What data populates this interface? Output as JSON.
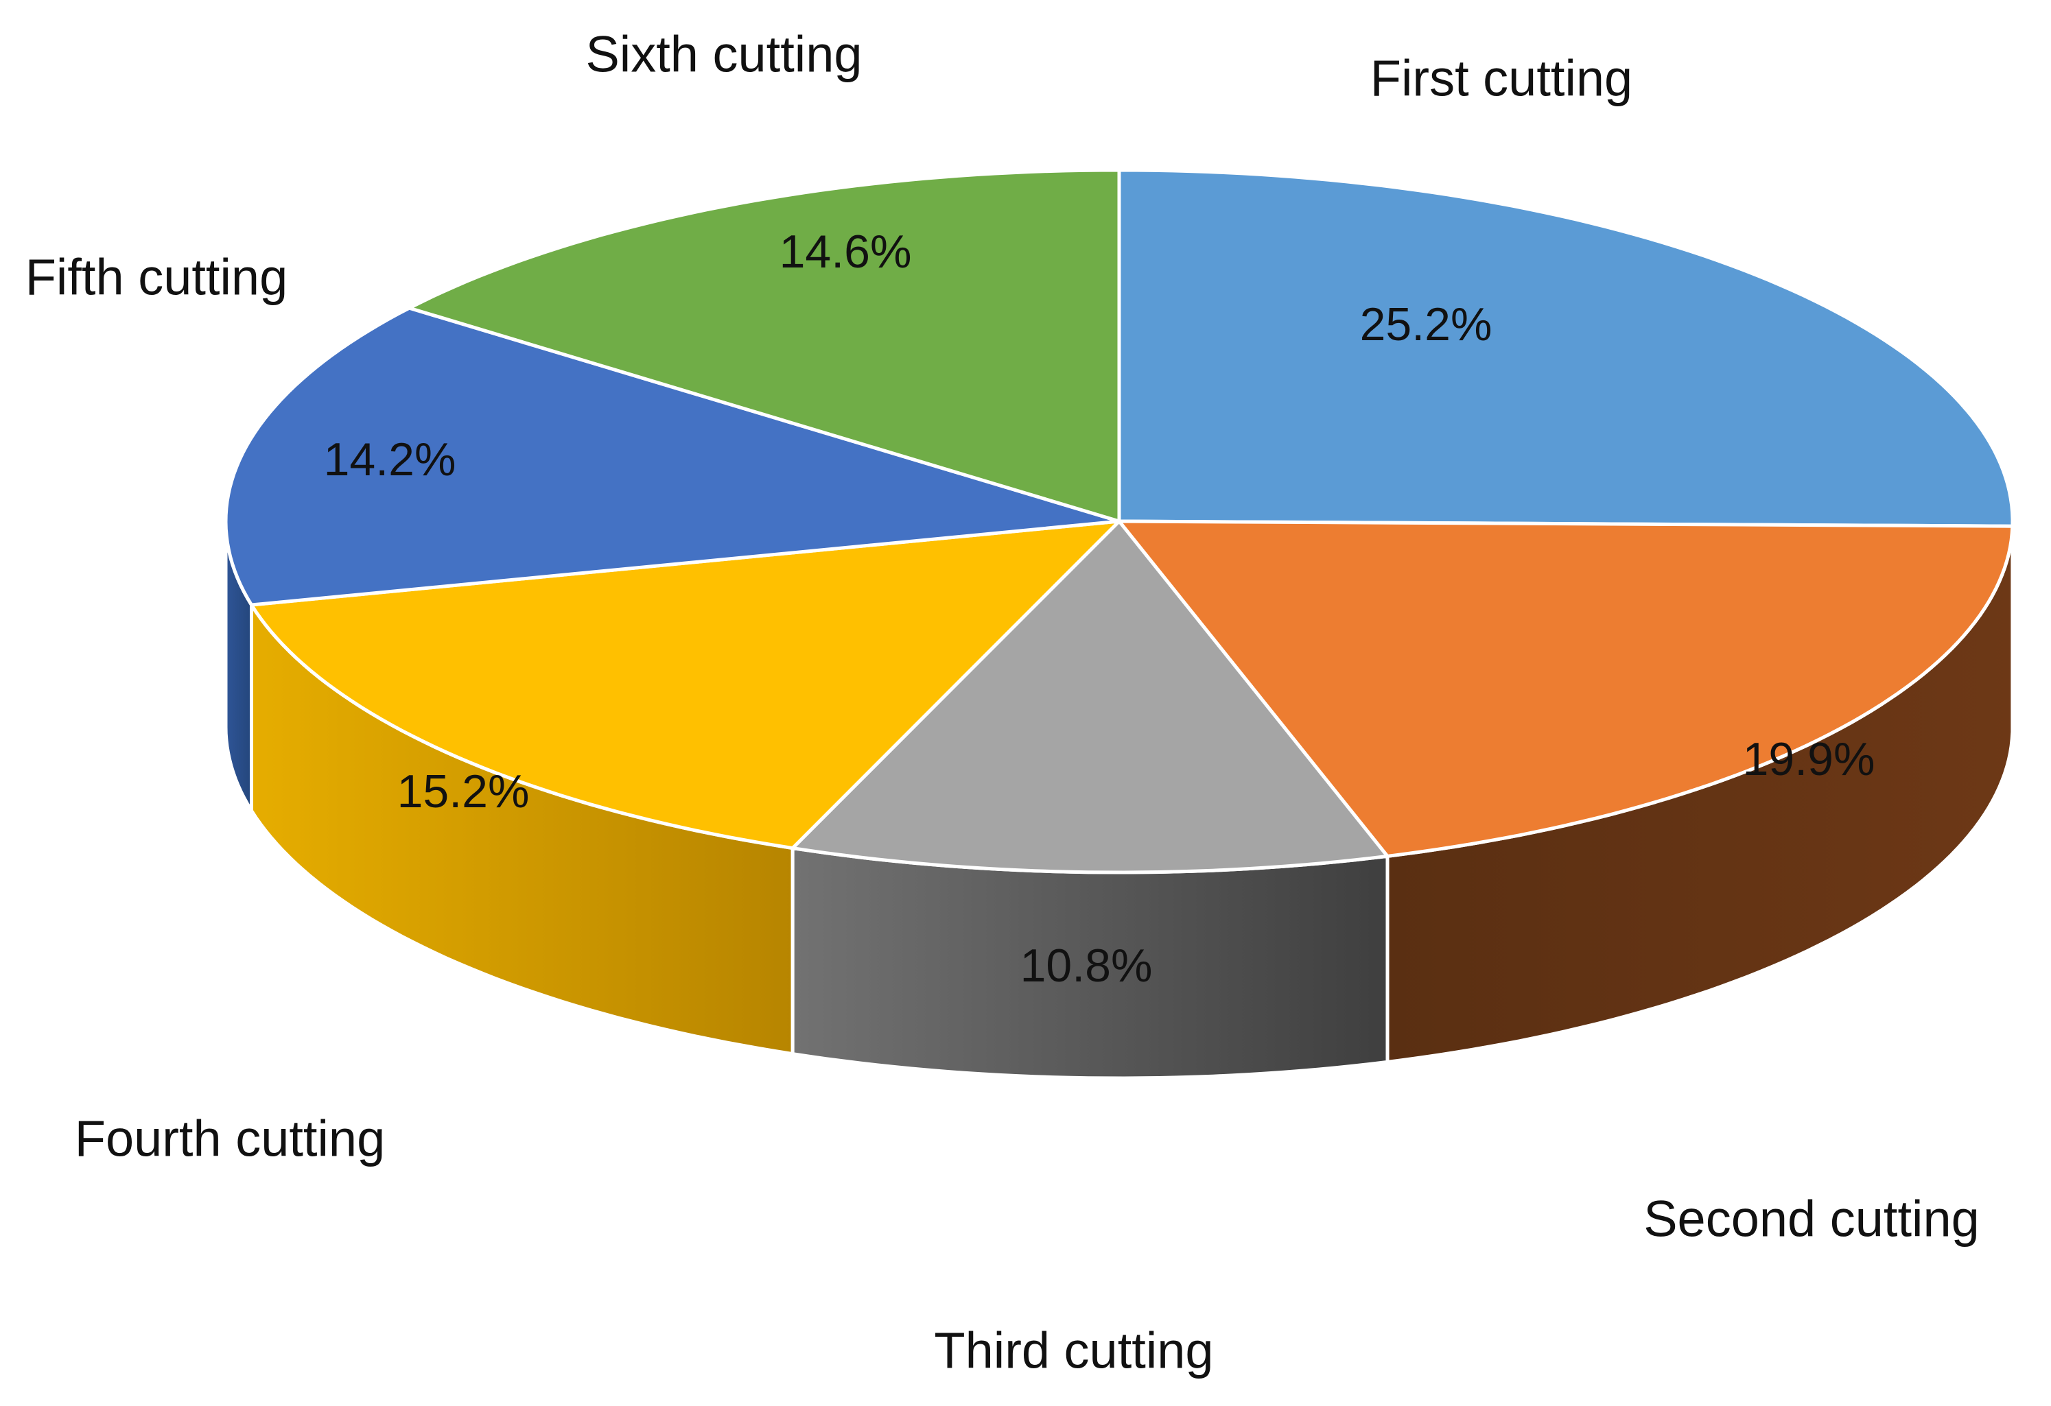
{
  "chart_data": {
    "type": "pie",
    "style": "3d",
    "slices": [
      {
        "label": "First cutting",
        "value": 25.2,
        "display": "25.2%",
        "color": "#5B9BD5"
      },
      {
        "label": "Second cutting",
        "value": 19.9,
        "display": "19.9%",
        "color": "#ED7D31"
      },
      {
        "label": "Third cutting",
        "value": 10.8,
        "display": "10.8%",
        "color": "#A5A5A5"
      },
      {
        "label": "Fourth cutting",
        "value": 15.2,
        "display": "15.2%",
        "color": "#FFC000"
      },
      {
        "label": "Fifth cutting",
        "value": 14.2,
        "display": "14.2%",
        "color": "#4472C4"
      },
      {
        "label": "Sixth cutting",
        "value": 14.6,
        "display": "14.6%",
        "color": "#70AD47"
      }
    ],
    "legend": "none",
    "labels_outside": true,
    "values_inside": true
  }
}
